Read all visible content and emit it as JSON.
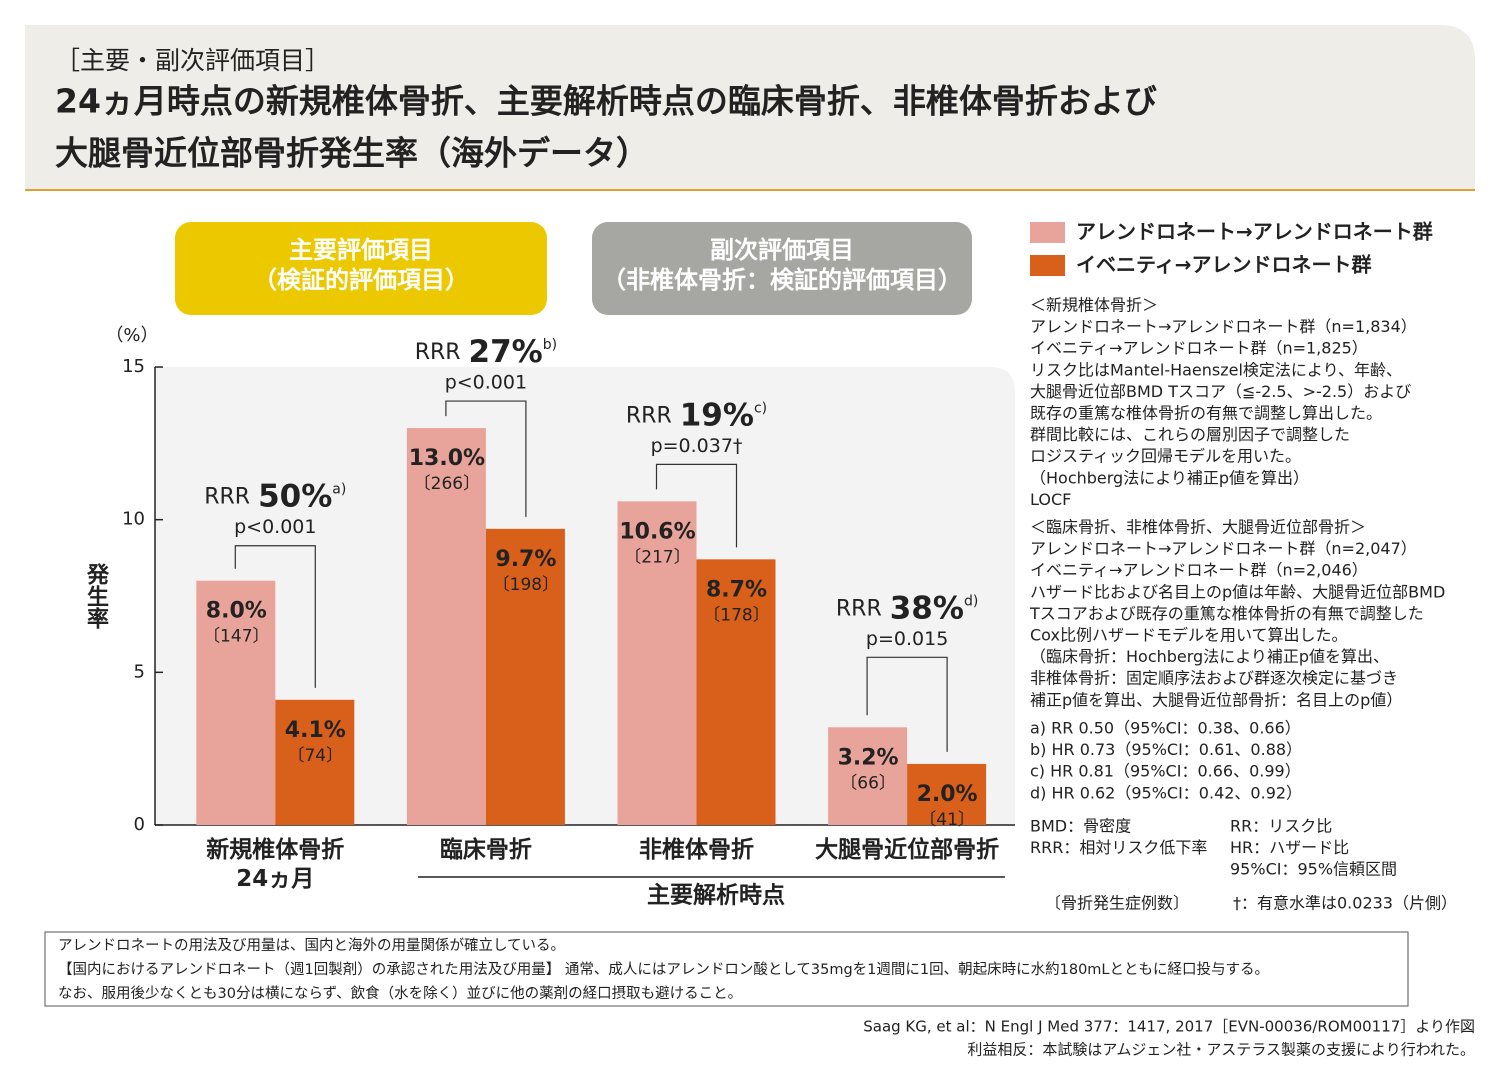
{
  "header": {
    "tag": "［主要・副次評価項目］",
    "title": [
      "24ヵ月時点の新規椎体骨折、主要解析時点の臨床骨折、非椎体骨折および",
      "大腿骨近位部骨折発生率（海外データ）"
    ]
  },
  "panels": [
    {
      "label": "主要評価項目\n（検証的評価項目）",
      "color": "#ecc800"
    },
    {
      "label": "副次評価項目\n（非椎体骨折：検証的評価項目）",
      "color": "#a6a6a3"
    }
  ],
  "chart_data": {
    "type": "bar",
    "y_unit": "（%）",
    "y_label": "発生率",
    "categories": [
      "新規椎体骨折\n24ヵ月",
      "臨床骨折",
      "非椎体骨折",
      "大腿骨近位部骨折"
    ],
    "category_group": "主要解析時点",
    "ylim": [
      0,
      15
    ],
    "yticks": [
      0,
      5,
      10,
      15
    ],
    "series": [
      {
        "name": "アレンドロネート→アレンドロネート群",
        "color": "#e8a39a",
        "values": [
          8.0,
          13.0,
          10.6,
          3.2
        ],
        "value_labels": [
          "8.0%",
          "13.0%",
          "10.6%",
          "3.2%"
        ],
        "cases": [
          "〔147〕",
          "〔266〕",
          "〔217〕",
          "〔66〕"
        ]
      },
      {
        "name": "イベニティ→アレンドロネート群",
        "color": "#d9601b",
        "values": [
          4.1,
          9.7,
          8.7,
          2.0
        ],
        "value_labels": [
          "4.1%",
          "9.7%",
          "8.7%",
          "2.0%"
        ],
        "cases": [
          "〔74〕",
          "〔198〕",
          "〔178〕",
          "〔41〕"
        ]
      }
    ],
    "comparisons": [
      {
        "prefix": "RRR",
        "rrr": "50%",
        "note": "a)",
        "p": "p<0.001"
      },
      {
        "prefix": "RRR",
        "rrr": "27%",
        "note": "b)",
        "p": "p<0.001"
      },
      {
        "prefix": "RRR",
        "rrr": "19%",
        "note": "c)",
        "p": "p=0.037†"
      },
      {
        "prefix": "RRR",
        "rrr": "38%",
        "note": "d)",
        "p": "p=0.015"
      }
    ]
  },
  "notes": {
    "blocks": [
      [
        "＜新規椎体骨折＞",
        "アレンドロネート→アレンドロネート群（n=1,834）",
        "イベニティ→アレンドロネート群（n=1,825）",
        "リスク比はMantel-Haenszel検定法により、年齢、",
        "大腿骨近位部BMD Tスコア（≦-2.5、>-2.5）および",
        "既存の重篤な椎体骨折の有無で調整し算出した。",
        "群間比較には、これらの層別因子で調整した",
        "ロジスティック回帰モデルを用いた。",
        "（Hochberg法により補正p値を算出）",
        "LOCF"
      ],
      [
        "＜臨床骨折、非椎体骨折、大腿骨近位部骨折＞",
        "アレンドロネート→アレンドロネート群（n=2,047）",
        "イベニティ→アレンドロネート群（n=2,046）",
        "ハザード比および名目上のp値は年齢、大腿骨近位部BMD",
        "Tスコアおよび既存の重篤な椎体骨折の有無で調整した",
        "Cox比例ハザードモデルを用いて算出した。",
        "（臨床骨折：Hochberg法により補正p値を算出、",
        "非椎体骨折：固定順序法および群逐次検定に基づき",
        "補正p値を算出、大腿骨近位部骨折：名目上のp値）"
      ],
      [
        "a) RR 0.50（95%CI：0.38、0.66）",
        "b) HR 0.73（95%CI：0.61、0.88）",
        "c) HR 0.81（95%CI：0.66、0.99）",
        "d) HR 0.62（95%CI：0.42、0.92）"
      ]
    ],
    "abbreviations": [
      [
        "BMD：骨密度",
        "RR：リスク比"
      ],
      [
        "RRR：相対リスク低下率",
        "HR：ハザード比"
      ],
      [
        "",
        "95%CI：95%信頼区間"
      ]
    ],
    "legend_notes": [
      "〔骨折発生症例数〕",
      "†：有意水準は0.0233（片側）"
    ]
  },
  "footer": {
    "box": [
      "アレンドロネートの用法及び用量は、国内と海外の用量関係が確立している。",
      "【国内におけるアレンドロネート（週1回製剤）の承認された用法及び用量】 通常、成人にはアレンドロン酸として35mgを1週間に1回、朝起床時に水約180mLとともに経口投与する。",
      "なお、服用後少なくとも30分は横にならず、飲食（水を除く）並びに他の薬剤の経口摂取も避けること。"
    ],
    "source": [
      "Saag KG, et al：N Engl J Med 377：1417, 2017［EVN-00036/ROM00117］より作図",
      "利益相反：本試験はアムジェン社・アステラス製薬の支援により行われた。"
    ]
  }
}
